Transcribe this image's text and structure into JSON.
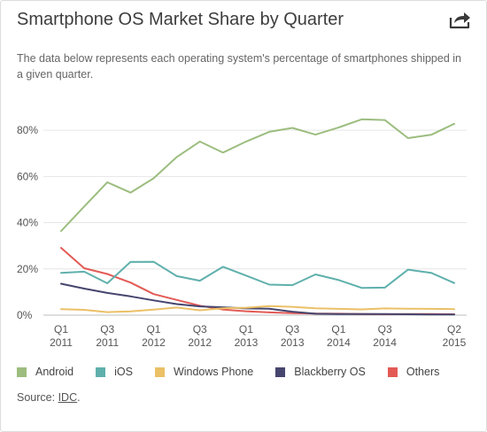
{
  "header": {
    "title": "Smartphone OS Market Share by Quarter",
    "share_icon": "share-icon",
    "description": "The data below represents each operating system's percentage of smartphones shipped in a given quarter."
  },
  "footer": {
    "source_prefix": "Source: ",
    "source_link": "IDC",
    "source_suffix": "."
  },
  "chart_data": {
    "type": "line",
    "x": [
      "Q1 2011",
      "Q2 2011",
      "Q3 2011",
      "Q4 2011",
      "Q1 2012",
      "Q2 2012",
      "Q3 2012",
      "Q4 2012",
      "Q1 2013",
      "Q2 2013",
      "Q3 2013",
      "Q4 2013",
      "Q1 2014",
      "Q2 2014",
      "Q3 2014",
      "Q4 2014",
      "Q1 2015",
      "Q2 2015"
    ],
    "x_tick_labels": [
      {
        "index": 0,
        "line1": "Q1",
        "line2": "2011"
      },
      {
        "index": 2,
        "line1": "Q3",
        "line2": "2011"
      },
      {
        "index": 4,
        "line1": "Q1",
        "line2": "2012"
      },
      {
        "index": 6,
        "line1": "Q3",
        "line2": "2012"
      },
      {
        "index": 8,
        "line1": "Q1",
        "line2": "2013"
      },
      {
        "index": 10,
        "line1": "Q3",
        "line2": "2013"
      },
      {
        "index": 12,
        "line1": "Q1",
        "line2": "2014"
      },
      {
        "index": 14,
        "line1": "Q3",
        "line2": "2014"
      },
      {
        "index": 17,
        "line1": "Q2",
        "line2": "2015"
      }
    ],
    "y_ticks": [
      0,
      20,
      40,
      60,
      80
    ],
    "y_tick_labels": [
      "0%",
      "20%",
      "40%",
      "60%",
      "80%"
    ],
    "ylim": [
      0,
      90
    ],
    "grid": "horizontal",
    "legend_position": "bottom",
    "series": [
      {
        "name": "Android",
        "color": "#9cbd7f",
        "values": [
          36.4,
          47,
          57.5,
          53,
          59.2,
          68.4,
          75.1,
          70.3,
          75.1,
          79.3,
          81,
          78.1,
          81.2,
          84.7,
          84.4,
          76.6,
          78,
          82.8
        ]
      },
      {
        "name": "iOS",
        "color": "#5fb0ac",
        "values": [
          18.3,
          18.8,
          13.8,
          23,
          23.1,
          16.9,
          14.9,
          20.9,
          17.1,
          13.2,
          13,
          17.6,
          15.2,
          11.8,
          11.9,
          19.7,
          18.3,
          13.9
        ]
      },
      {
        "name": "Windows Phone",
        "color": "#ebc067",
        "values": [
          2.6,
          2.3,
          1.3,
          1.6,
          2.4,
          3.3,
          2.1,
          3,
          3.2,
          3.9,
          3.6,
          3,
          2.7,
          2.5,
          2.9,
          2.8,
          2.7,
          2.6
        ]
      },
      {
        "name": "Blackberry OS",
        "color": "#46456e",
        "values": [
          13.6,
          11.5,
          9.6,
          8.1,
          6.4,
          4.8,
          3.8,
          3.4,
          2.9,
          2.8,
          1.5,
          0.6,
          0.5,
          0.5,
          0.5,
          0.4,
          0.3,
          0.3
        ]
      },
      {
        "name": "Others",
        "color": "#e35a55",
        "values": [
          29.1,
          20.3,
          17.8,
          14.1,
          9.1,
          6.6,
          4.1,
          2.4,
          1.7,
          1.2,
          0.9,
          0.7,
          0.6,
          0.5,
          0.4,
          0.5,
          0.5,
          0.4
        ]
      }
    ]
  }
}
